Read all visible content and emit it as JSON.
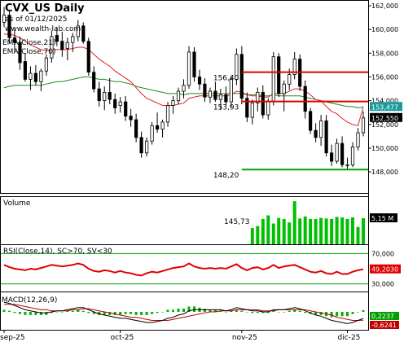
{
  "header": {
    "title": "CVX_US Daily",
    "asof": "as of 01/12/2025",
    "site": "www.wealth-lab.com",
    "ema21_label": "EMA(Close,21)",
    "ema70_label": "EMA(Close,70)"
  },
  "colors": {
    "up": "#ffffff",
    "down": "#000000",
    "ema21": "#e02020",
    "ema70": "#1f8a1f",
    "resistance": "#e00000",
    "support": "#00a000",
    "volume": "#00c000",
    "rsi": "#e00000",
    "macd": "#000000",
    "signal": "#c00000",
    "hist": "#00b000",
    "price_tag": "#1a9a9a"
  },
  "chart_data": [
    {
      "type": "candlestick",
      "title": "CVX_US Daily",
      "ylim": [
        146.5,
        162
      ],
      "y_ticks": [
        148,
        150,
        152,
        154,
        156,
        158,
        160,
        162
      ],
      "y_tick_labels": [
        "148,000",
        "150,000",
        "152,000",
        "154,000",
        "156,000",
        "158,000",
        "160,000",
        "162,000"
      ],
      "x_tick_labels": [
        "sep-25",
        "oct-25",
        "nov-25",
        "dic-25"
      ],
      "x_tick_index": [
        0,
        22,
        45,
        65
      ],
      "candles": [
        [
          160.6,
          161.9,
          160.2,
          161.2
        ],
        [
          161.2,
          161.6,
          158.8,
          159.3
        ],
        [
          159.3,
          160.0,
          158.1,
          158.9
        ],
        [
          158.9,
          159.4,
          156.6,
          157.2
        ],
        [
          157.3,
          158.0,
          155.6,
          155.8
        ],
        [
          155.8,
          156.9,
          154.9,
          156.3
        ],
        [
          156.3,
          157.0,
          155.3,
          155.6
        ],
        [
          155.6,
          156.7,
          154.8,
          156.5
        ],
        [
          156.5,
          157.9,
          156.1,
          157.6
        ],
        [
          157.6,
          159.9,
          157.2,
          159.4
        ],
        [
          159.5,
          160.2,
          158.6,
          159.0
        ],
        [
          159.0,
          159.8,
          157.7,
          158.3
        ],
        [
          158.4,
          159.3,
          157.4,
          158.9
        ],
        [
          158.9,
          159.7,
          158.1,
          159.4
        ],
        [
          159.4,
          160.8,
          159.0,
          160.3
        ],
        [
          160.3,
          160.6,
          158.8,
          159.0
        ],
        [
          159.0,
          159.3,
          156.1,
          156.4
        ],
        [
          156.4,
          156.9,
          154.7,
          155.0
        ],
        [
          155.0,
          155.6,
          153.5,
          154.0
        ],
        [
          154.0,
          155.2,
          153.2,
          154.7
        ],
        [
          154.7,
          155.9,
          153.7,
          154.1
        ],
        [
          154.1,
          154.6,
          152.9,
          153.4
        ],
        [
          153.6,
          154.3,
          153.0,
          153.9
        ],
        [
          153.9,
          154.4,
          152.3,
          152.7
        ],
        [
          152.7,
          153.3,
          151.8,
          152.4
        ],
        [
          152.4,
          152.9,
          150.5,
          150.9
        ],
        [
          150.9,
          151.4,
          149.2,
          149.6
        ],
        [
          149.6,
          150.9,
          149.3,
          150.6
        ],
        [
          150.6,
          152.2,
          150.3,
          151.9
        ],
        [
          151.9,
          153.0,
          151.3,
          151.6
        ],
        [
          151.6,
          152.4,
          150.9,
          152.2
        ],
        [
          152.2,
          153.9,
          151.8,
          153.6
        ],
        [
          153.6,
          154.4,
          152.9,
          154.0
        ],
        [
          154.0,
          155.1,
          153.7,
          154.8
        ],
        [
          154.8,
          155.8,
          154.2,
          155.3
        ],
        [
          155.3,
          158.6,
          155.0,
          158.1
        ],
        [
          158.1,
          158.5,
          155.6,
          156.0
        ],
        [
          156.0,
          156.6,
          154.9,
          155.4
        ],
        [
          155.4,
          155.9,
          153.9,
          154.3
        ],
        [
          154.3,
          155.1,
          153.8,
          154.8
        ],
        [
          154.8,
          155.6,
          153.9,
          154.1
        ],
        [
          154.1,
          155.0,
          153.2,
          154.5
        ],
        [
          154.5,
          155.2,
          153.6,
          153.9
        ],
        [
          153.9,
          156.1,
          153.4,
          155.8
        ],
        [
          155.8,
          158.4,
          155.3,
          157.9
        ],
        [
          157.9,
          158.6,
          153.7,
          154.2
        ],
        [
          154.2,
          154.7,
          152.2,
          152.6
        ],
        [
          152.6,
          154.1,
          152.0,
          153.8
        ],
        [
          153.8,
          155.1,
          153.1,
          154.7
        ],
        [
          154.7,
          155.3,
          152.5,
          152.8
        ],
        [
          152.8,
          154.2,
          152.4,
          153.9
        ],
        [
          153.9,
          158.1,
          153.6,
          157.7
        ],
        [
          157.7,
          158.0,
          154.3,
          154.6
        ],
        [
          154.6,
          155.7,
          153.1,
          155.4
        ],
        [
          155.4,
          156.7,
          154.9,
          156.2
        ],
        [
          156.2,
          158.1,
          155.8,
          157.5
        ],
        [
          157.5,
          157.9,
          154.8,
          155.2
        ],
        [
          155.2,
          155.7,
          152.5,
          153.1
        ],
        [
          153.1,
          153.4,
          151.2,
          151.5
        ],
        [
          151.5,
          152.1,
          150.5,
          150.9
        ],
        [
          150.9,
          152.8,
          150.2,
          152.3
        ],
        [
          152.3,
          152.8,
          149.3,
          149.6
        ],
        [
          149.6,
          150.3,
          148.5,
          148.9
        ],
        [
          148.9,
          150.8,
          148.7,
          150.4
        ],
        [
          150.4,
          151.0,
          148.4,
          148.6
        ],
        [
          148.6,
          149.2,
          148.2,
          148.6
        ],
        [
          148.6,
          150.5,
          148.4,
          150.1
        ],
        [
          150.1,
          151.7,
          149.8,
          151.3
        ],
        [
          151.3,
          153.1,
          151.0,
          152.55
        ]
      ],
      "ema21": [
        159.6,
        159.6,
        159.5,
        159.3,
        159.0,
        158.7,
        158.5,
        158.3,
        158.2,
        158.3,
        158.3,
        158.3,
        158.3,
        158.4,
        158.5,
        158.5,
        158.3,
        157.9,
        157.5,
        157.2,
        156.9,
        156.5,
        156.2,
        155.9,
        155.6,
        155.1,
        154.6,
        154.2,
        154.0,
        153.8,
        153.6,
        153.6,
        153.6,
        153.7,
        153.8,
        154.2,
        154.3,
        154.4,
        154.4,
        154.4,
        154.4,
        154.4,
        154.4,
        154.5,
        154.8,
        154.7,
        154.5,
        154.4,
        154.4,
        154.3,
        154.3,
        154.6,
        154.6,
        154.6,
        154.8,
        155.0,
        155.0,
        154.8,
        154.5,
        154.1,
        154.0,
        153.5,
        153.1,
        152.9,
        152.5,
        152.2,
        152.0,
        151.9,
        153.477
      ],
      "ema70": [
        155.1,
        155.2,
        155.3,
        155.3,
        155.3,
        155.3,
        155.3,
        155.3,
        155.4,
        155.5,
        155.6,
        155.6,
        155.7,
        155.8,
        155.9,
        156.0,
        156.0,
        155.9,
        155.8,
        155.8,
        155.7,
        155.6,
        155.6,
        155.5,
        155.4,
        155.2,
        155.1,
        155.0,
        154.9,
        154.8,
        154.7,
        154.6,
        154.6,
        154.6,
        154.5,
        154.6,
        154.6,
        154.6,
        154.6,
        154.6,
        154.6,
        154.6,
        154.6,
        154.6,
        154.6,
        154.6,
        154.5,
        154.5,
        154.5,
        154.4,
        154.4,
        154.5,
        154.4,
        154.4,
        154.4,
        154.4,
        154.4,
        154.3,
        154.2,
        154.1,
        154.0,
        153.9,
        153.8,
        153.7,
        153.6,
        153.5,
        153.5,
        153.4,
        153.477
      ],
      "levels": [
        {
          "value": 156.4,
          "label": "156,40",
          "kind": "resistance",
          "start_index": 45
        },
        {
          "value": 153.93,
          "label": "153,93",
          "kind": "resistance",
          "start_index": 45
        },
        {
          "value": 148.2,
          "label": "148,20",
          "kind": "support",
          "start_index": 45
        }
      ],
      "last_values": [
        {
          "series": "ema21",
          "value": 153.477,
          "label": "153,477"
        },
        {
          "series": "close",
          "value": 152.55,
          "label": "152,550"
        }
      ]
    },
    {
      "type": "bar",
      "title": "Volume",
      "note": "145,73",
      "last_label": "5,15 M",
      "volume_start_index": 47,
      "values_m": [
        3.2,
        3.6,
        5.0,
        5.7,
        4.1,
        5.2,
        5.0,
        4.3,
        8.5,
        5.1,
        5.5,
        5.0,
        5.0,
        5.2,
        5.1,
        5.0,
        5.4,
        5.3,
        5.0,
        5.3,
        3.4,
        5.15
      ]
    },
    {
      "type": "line",
      "title": "RSI(Close,14), SC>70, SV<30",
      "ylim": [
        20,
        80
      ],
      "levels": [
        70,
        30
      ],
      "y_tick_labels": [
        "70,000",
        "30,000"
      ],
      "last_label": "49,2030",
      "values": [
        55,
        52,
        50,
        49,
        48,
        50,
        49,
        51,
        53,
        55,
        54,
        53,
        54,
        55,
        57,
        55,
        50,
        47,
        46,
        48,
        47,
        45,
        47,
        45,
        44,
        42,
        41,
        44,
        46,
        45,
        47,
        49,
        51,
        52,
        53,
        57,
        53,
        51,
        50,
        51,
        50,
        51,
        50,
        53,
        56,
        51,
        48,
        51,
        52,
        49,
        51,
        55,
        51,
        53,
        54,
        55,
        52,
        49,
        46,
        45,
        47,
        44,
        43,
        46,
        43,
        43,
        46,
        48,
        49.2
      ]
    },
    {
      "type": "line",
      "title": "MACD(12,26,9)",
      "ylim": [
        -1.6,
        1.6
      ],
      "last_labels": [
        "0,2237",
        "-0,6241"
      ],
      "macd": [
        0.9,
        0.8,
        0.6,
        0.4,
        0.2,
        0.1,
        0.0,
        -0.1,
        -0.1,
        0.0,
        0.1,
        0.1,
        0.2,
        0.3,
        0.4,
        0.4,
        0.2,
        0.0,
        -0.2,
        -0.3,
        -0.4,
        -0.5,
        -0.6,
        -0.6,
        -0.7,
        -0.8,
        -0.9,
        -1.0,
        -1.0,
        -0.9,
        -0.8,
        -0.6,
        -0.5,
        -0.3,
        -0.2,
        0.1,
        0.2,
        0.2,
        0.2,
        0.2,
        0.2,
        0.2,
        0.1,
        0.2,
        0.4,
        0.3,
        0.2,
        0.1,
        0.1,
        0.0,
        0.0,
        0.2,
        0.2,
        0.2,
        0.3,
        0.4,
        0.3,
        0.1,
        -0.1,
        -0.3,
        -0.4,
        -0.6,
        -0.8,
        -0.9,
        -1.0,
        -1.1,
        -1.0,
        -0.8,
        -0.62
      ],
      "signal": [
        0.7,
        0.7,
        0.7,
        0.6,
        0.5,
        0.4,
        0.3,
        0.2,
        0.2,
        0.1,
        0.1,
        0.1,
        0.1,
        0.2,
        0.2,
        0.3,
        0.3,
        0.2,
        0.1,
        0.0,
        -0.1,
        -0.2,
        -0.3,
        -0.4,
        -0.5,
        -0.5,
        -0.6,
        -0.7,
        -0.8,
        -0.8,
        -0.8,
        -0.8,
        -0.7,
        -0.6,
        -0.5,
        -0.4,
        -0.3,
        -0.2,
        -0.1,
        0.0,
        0.0,
        0.1,
        0.1,
        0.1,
        0.2,
        0.2,
        0.2,
        0.2,
        0.2,
        0.1,
        0.1,
        0.1,
        0.2,
        0.2,
        0.2,
        0.2,
        0.2,
        0.2,
        0.1,
        0.0,
        -0.1,
        -0.2,
        -0.3,
        -0.5,
        -0.6,
        -0.7,
        -0.8,
        -0.8,
        -0.78
      ]
    }
  ]
}
